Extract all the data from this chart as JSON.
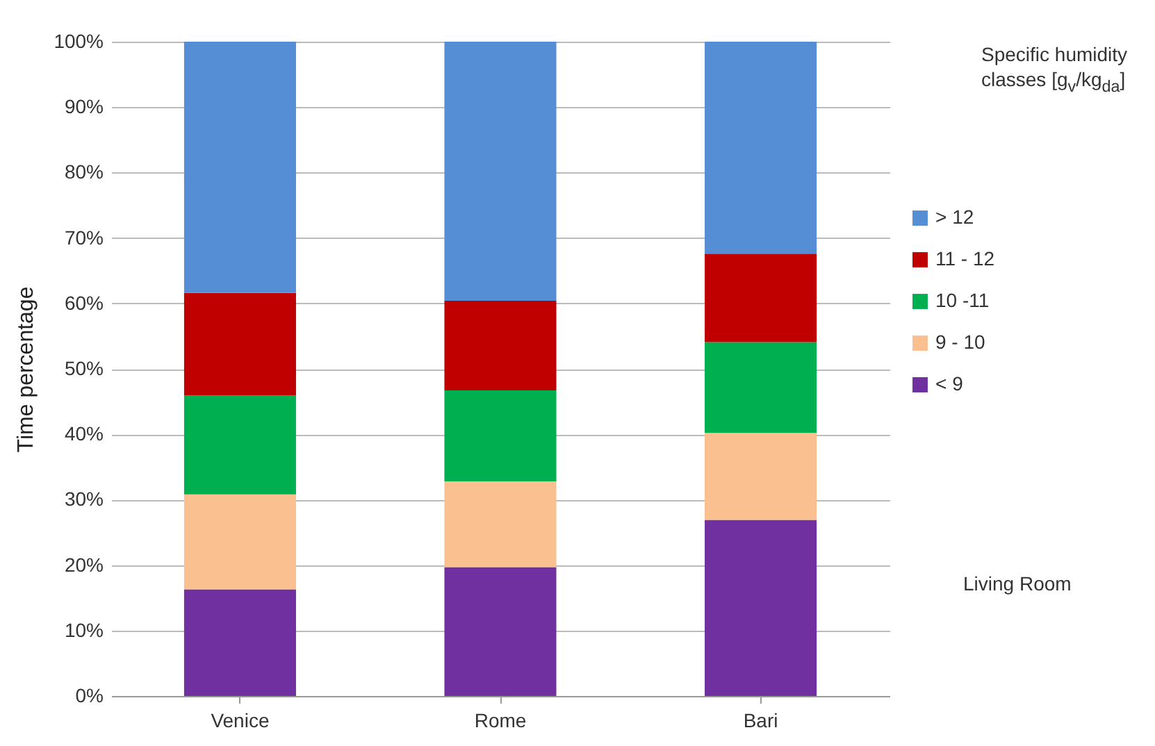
{
  "chart_data": {
    "type": "bar",
    "stacked": true,
    "ylabel": "Time percentage",
    "legend_title": "Specific humidity classes [g$_{v}$/kg$_{da}$]",
    "annotations": [
      "Living Room"
    ],
    "categories": [
      "Venice",
      "Rome",
      "Bari"
    ],
    "series": [
      {
        "name": "< 9",
        "color": "#7030a0",
        "values": [
          16.3,
          19.7,
          26.9
        ]
      },
      {
        "name": "9 - 10",
        "color": "#fac090",
        "values": [
          14.5,
          13.1,
          13.3
        ]
      },
      {
        "name": "10 -11",
        "color": "#00b050",
        "values": [
          15.1,
          13.9,
          13.9
        ]
      },
      {
        "name": "11 - 12",
        "color": "#c00000",
        "values": [
          15.7,
          13.7,
          13.5
        ]
      },
      {
        "name": "> 12",
        "color": "#558ed5",
        "values": [
          38.4,
          39.6,
          32.4
        ]
      }
    ],
    "ylim": [
      0,
      100
    ],
    "yticks": [
      {
        "value": 0,
        "label": "0%"
      },
      {
        "value": 10,
        "label": "10%"
      },
      {
        "value": 20,
        "label": "20%"
      },
      {
        "value": 30,
        "label": "30%"
      },
      {
        "value": 40,
        "label": "40%"
      },
      {
        "value": 50,
        "label": "50%"
      },
      {
        "value": 60,
        "label": "60%"
      },
      {
        "value": 70,
        "label": "70%"
      },
      {
        "value": 80,
        "label": "80%"
      },
      {
        "value": 90,
        "label": "90%"
      },
      {
        "value": 100,
        "label": "100%"
      }
    ],
    "grid": "y",
    "legend": "right"
  }
}
